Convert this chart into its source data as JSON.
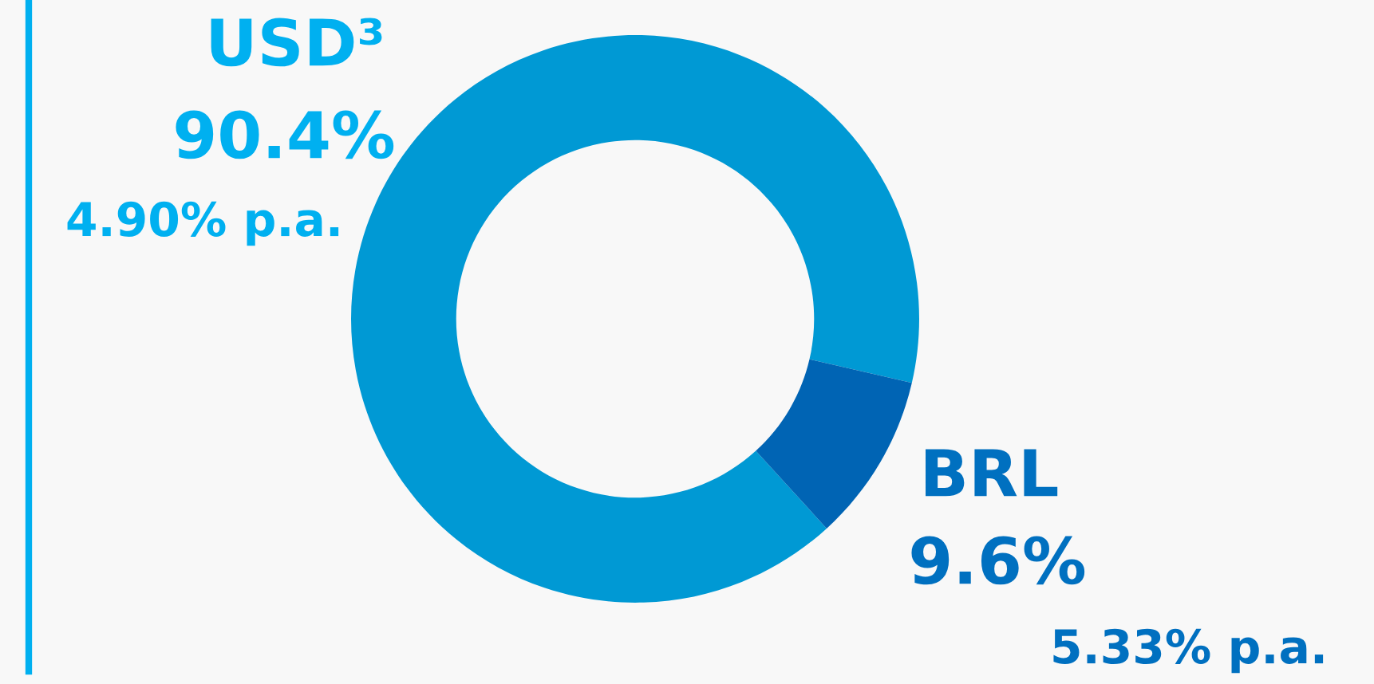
{
  "chart_data": {
    "type": "donut",
    "categories": [
      "USD³",
      "BRL"
    ],
    "values": [
      90.4,
      9.6
    ],
    "colors": [
      "#0099d4",
      "#0064b4"
    ],
    "value_labels": [
      "90.4%",
      "9.6%"
    ],
    "annotations": [
      "4.90% p.a.",
      "5.33% p.a."
    ],
    "legend": false
  }
}
